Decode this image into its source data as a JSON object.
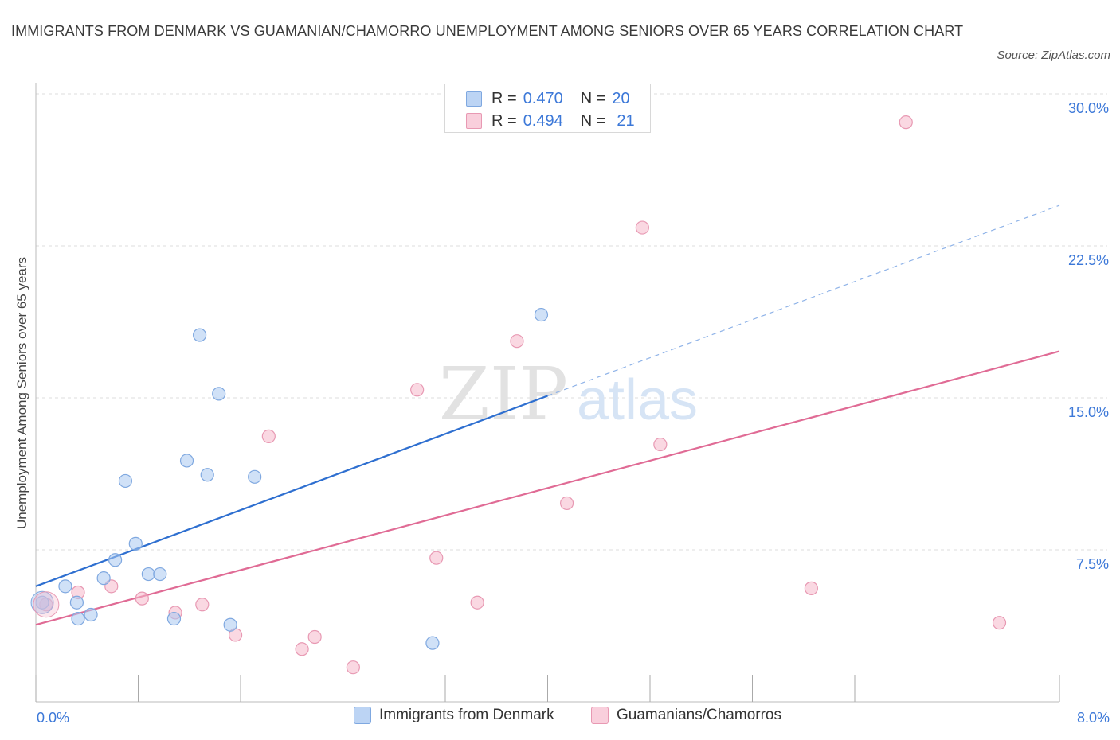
{
  "title": "IMMIGRANTS FROM DENMARK VS GUAMANIAN/CHAMORRO UNEMPLOYMENT AMONG SENIORS OVER 65 YEARS CORRELATION CHART",
  "source": "Source: ZipAtlas.com",
  "watermark": {
    "zip": "ZIP",
    "atlas": "atlas"
  },
  "legend": {
    "rows": [
      {
        "r_label": "R =",
        "r_value": "0.470",
        "n_label": "N =",
        "n_value": "20"
      },
      {
        "r_label": "R =",
        "r_value": "0.494",
        "n_label": "N =",
        "n_value": "21"
      }
    ]
  },
  "bottom_legend": {
    "series1": "Immigrants from Denmark",
    "series2": "Guamanians/Chamorros"
  },
  "colors": {
    "blue_fill": "#aac8f0",
    "blue_stroke": "#7fa8e0",
    "blue_line": "#2e6fd0",
    "pink_fill": "#f5b8cb",
    "pink_stroke": "#e899b3",
    "pink_line": "#e06b95",
    "tick_label": "#3c78d8",
    "grid": "#dcdcdc"
  },
  "chart_data": {
    "type": "scatter",
    "title": "IMMIGRANTS FROM DENMARK VS GUAMANIAN/CHAMORRO UNEMPLOYMENT AMONG SENIORS OVER 65 YEARS CORRELATION CHART",
    "xlabel": "",
    "ylabel": "Unemployment Among Seniors over 65 years",
    "xlim": [
      0,
      8
    ],
    "ylim": [
      0,
      30
    ],
    "x_tick_labels": [
      "0.0%",
      "8.0%"
    ],
    "y_ticks": [
      7.5,
      15.0,
      22.5,
      30.0
    ],
    "y_tick_labels": [
      "7.5%",
      "15.0%",
      "22.5%",
      "30.0%"
    ],
    "grid": true,
    "legend_position": "top-center",
    "series": [
      {
        "name": "Immigrants from Denmark",
        "color": "#aac8f0",
        "points": [
          [
            0.05,
            4.9
          ],
          [
            0.23,
            5.7
          ],
          [
            0.32,
            4.9
          ],
          [
            0.33,
            4.1
          ],
          [
            0.43,
            4.3
          ],
          [
            0.53,
            6.1
          ],
          [
            0.62,
            7.0
          ],
          [
            0.7,
            10.9
          ],
          [
            0.78,
            7.8
          ],
          [
            0.88,
            6.3
          ],
          [
            0.97,
            6.3
          ],
          [
            1.08,
            4.1
          ],
          [
            1.18,
            11.9
          ],
          [
            1.28,
            18.1
          ],
          [
            1.34,
            11.2
          ],
          [
            1.43,
            15.2
          ],
          [
            1.52,
            3.8
          ],
          [
            1.71,
            11.1
          ],
          [
            3.1,
            2.9
          ],
          [
            3.95,
            19.1
          ]
        ],
        "trend": {
          "x": [
            0,
            4.0
          ],
          "y": [
            5.7,
            15.1
          ]
        },
        "trend_extension": {
          "x": [
            4.0,
            8.0
          ],
          "y": [
            15.1,
            24.5
          ]
        }
      },
      {
        "name": "Guamanians/Chamorros",
        "color": "#f5b8cb",
        "points": [
          [
            0.08,
            4.8
          ],
          [
            0.33,
            5.4
          ],
          [
            0.59,
            5.7
          ],
          [
            0.83,
            5.1
          ],
          [
            1.09,
            4.4
          ],
          [
            1.3,
            4.8
          ],
          [
            1.56,
            3.3
          ],
          [
            1.82,
            13.1
          ],
          [
            2.08,
            2.6
          ],
          [
            2.18,
            3.2
          ],
          [
            2.48,
            1.7
          ],
          [
            2.98,
            15.4
          ],
          [
            3.13,
            7.1
          ],
          [
            3.45,
            4.9
          ],
          [
            3.76,
            17.8
          ],
          [
            4.15,
            9.8
          ],
          [
            4.74,
            23.4
          ],
          [
            4.88,
            12.7
          ],
          [
            6.06,
            5.6
          ],
          [
            6.8,
            28.6
          ],
          [
            7.53,
            3.9
          ]
        ],
        "trend": {
          "x": [
            0,
            8.0
          ],
          "y": [
            3.8,
            17.3
          ]
        }
      }
    ]
  }
}
